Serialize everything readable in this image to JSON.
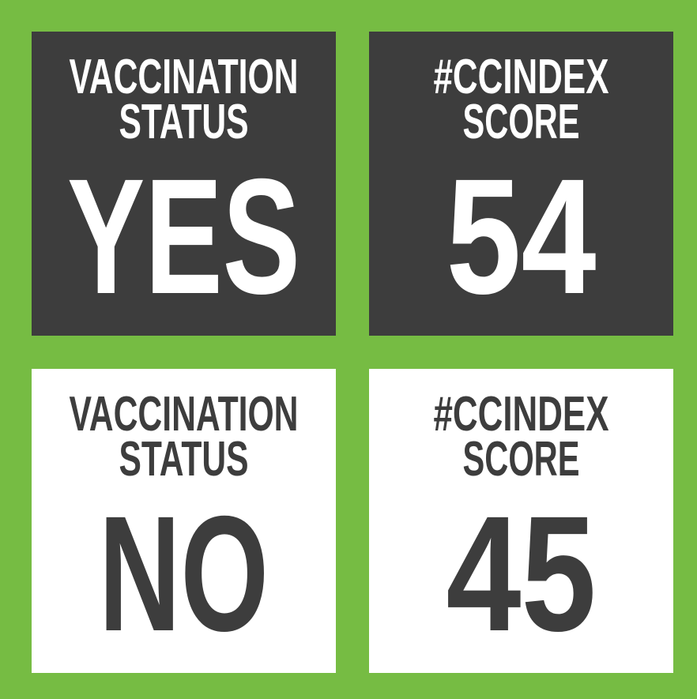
{
  "tiles": [
    {
      "label": [
        "VACCINATION",
        "STATUS"
      ],
      "value": "YES"
    },
    {
      "label": [
        "#CCINDEX",
        "SCORE"
      ],
      "value": "54"
    },
    {
      "label": [
        "VACCINATION",
        "STATUS"
      ],
      "value": "NO"
    },
    {
      "label": [
        "#CCINDEX",
        "SCORE"
      ],
      "value": "45"
    }
  ]
}
